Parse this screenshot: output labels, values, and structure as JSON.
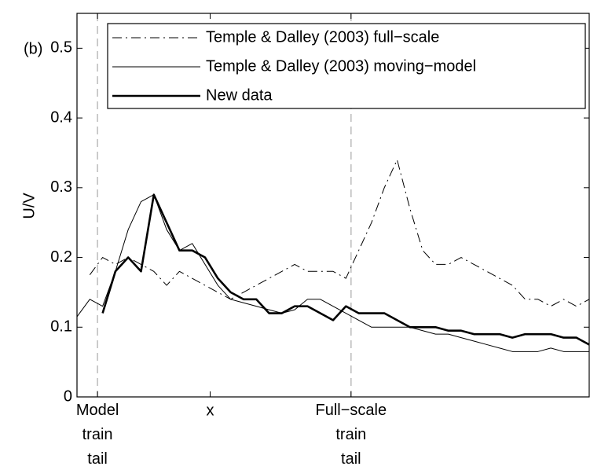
{
  "chart_data": {
    "type": "line",
    "annotation": "(b)",
    "y_label": "U/V",
    "ylim": [
      0,
      0.55
    ],
    "yticks": [
      0,
      0.1,
      0.2,
      0.3,
      0.4,
      0.5
    ],
    "xlim": [
      0,
      100
    ],
    "xticks": [
      {
        "value": 4,
        "label": "Model train tail"
      },
      {
        "value": 26,
        "label": "x"
      },
      {
        "value": 53.5,
        "label": "Full−scale train tail"
      }
    ],
    "reference_lines_x": [
      4,
      53.5
    ],
    "legend": "top-right",
    "x": [
      0,
      2.5,
      5,
      7.5,
      10,
      12.5,
      15,
      17.5,
      20,
      22.5,
      25,
      27.5,
      30,
      32.5,
      35,
      37.5,
      40,
      42.5,
      45,
      47.5,
      50,
      52.5,
      55,
      57.5,
      60,
      62.5,
      65,
      67.5,
      70,
      72.5,
      75,
      77.5,
      80,
      82.5,
      85,
      87.5,
      90,
      92.5,
      95,
      97.5,
      100
    ],
    "series": [
      {
        "name": "Temple & Dalley (2003) full−scale",
        "color": "#000000",
        "dash": "dashdot",
        "width": 1,
        "values": [
          null,
          0.175,
          0.2,
          0.19,
          0.2,
          0.19,
          0.18,
          0.16,
          0.18,
          0.17,
          0.16,
          0.15,
          0.14,
          0.15,
          0.16,
          0.17,
          0.18,
          0.19,
          0.18,
          0.18,
          0.18,
          0.17,
          0.21,
          0.25,
          0.3,
          0.34,
          0.27,
          0.21,
          0.19,
          0.19,
          0.2,
          0.19,
          0.18,
          0.17,
          0.16,
          0.14,
          0.14,
          0.13,
          0.14,
          0.13,
          0.14
        ]
      },
      {
        "name": "Temple & Dalley (2003) moving−model",
        "color": "#000000",
        "dash": "solid",
        "width": 1,
        "values": [
          0.115,
          0.14,
          0.13,
          0.18,
          0.24,
          0.28,
          0.29,
          0.24,
          0.21,
          0.22,
          0.19,
          0.16,
          0.14,
          0.135,
          0.13,
          0.125,
          0.12,
          0.125,
          0.14,
          0.14,
          0.13,
          0.12,
          0.11,
          0.1,
          0.1,
          0.1,
          0.1,
          0.095,
          0.09,
          0.09,
          0.085,
          0.08,
          0.075,
          0.07,
          0.065,
          0.065,
          0.065,
          0.07,
          0.065,
          0.065,
          0.065
        ]
      },
      {
        "name": "New data",
        "color": "#000000",
        "dash": "solid",
        "width": 2.6,
        "values": [
          null,
          null,
          0.12,
          0.18,
          0.2,
          0.18,
          0.29,
          0.25,
          0.21,
          0.21,
          0.2,
          0.17,
          0.15,
          0.14,
          0.14,
          0.12,
          0.12,
          0.13,
          0.13,
          0.12,
          0.11,
          0.13,
          0.12,
          0.12,
          0.12,
          0.11,
          0.1,
          0.1,
          0.1,
          0.095,
          0.095,
          0.09,
          0.09,
          0.09,
          0.085,
          0.09,
          0.09,
          0.09,
          0.085,
          0.085,
          0.075
        ]
      }
    ]
  }
}
